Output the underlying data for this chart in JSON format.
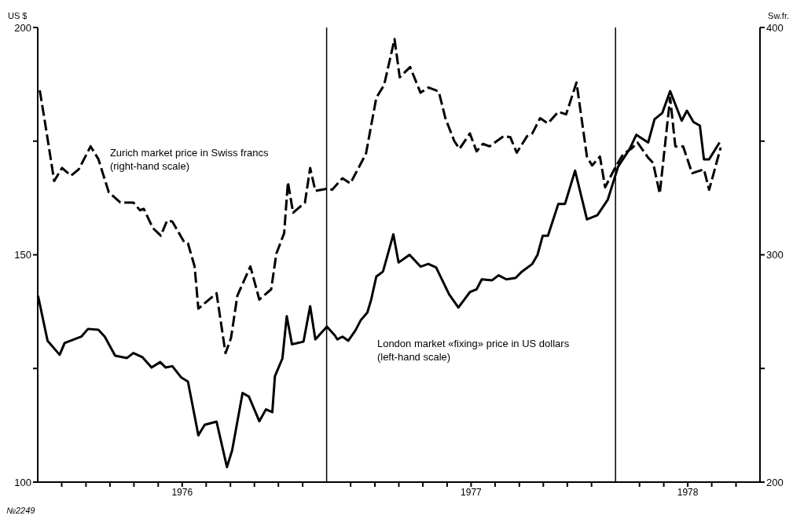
{
  "chart_data": {
    "type": "line",
    "ylabel": "US $",
    "y2label": "Sw.fr.",
    "annotations": [
      "№2249"
    ],
    "xlim": [
      1976,
      1978.5
    ],
    "xticks": [
      {
        "value": 1976.083,
        "label": null
      },
      {
        "value": 1976.167,
        "label": null
      },
      {
        "value": 1976.25,
        "label": null
      },
      {
        "value": 1976.333,
        "label": null
      },
      {
        "value": 1976.417,
        "label": null
      },
      {
        "value": 1976.5,
        "label": "1976"
      },
      {
        "value": 1976.583,
        "label": null
      },
      {
        "value": 1976.667,
        "label": null
      },
      {
        "value": 1976.75,
        "label": null
      },
      {
        "value": 1976.833,
        "label": null
      },
      {
        "value": 1976.917,
        "label": null
      },
      {
        "value": 1977.083,
        "label": null
      },
      {
        "value": 1977.167,
        "label": null
      },
      {
        "value": 1977.25,
        "label": null
      },
      {
        "value": 1977.333,
        "label": null
      },
      {
        "value": 1977.417,
        "label": null
      },
      {
        "value": 1977.5,
        "label": "1977"
      },
      {
        "value": 1977.583,
        "label": null
      },
      {
        "value": 1977.667,
        "label": null
      },
      {
        "value": 1977.75,
        "label": null
      },
      {
        "value": 1977.833,
        "label": null
      },
      {
        "value": 1977.917,
        "label": null
      },
      {
        "value": 1978.083,
        "label": null
      },
      {
        "value": 1978.167,
        "label": null
      },
      {
        "value": 1978.25,
        "label": "1978"
      },
      {
        "value": 1978.333,
        "label": null
      },
      {
        "value": 1978.417,
        "label": null
      }
    ],
    "ylim": [
      100,
      200
    ],
    "yticks": [
      100,
      {
        "value": 125,
        "label": null
      },
      150,
      {
        "value": 175,
        "label": null
      },
      200
    ],
    "y2lim": [
      200,
      400
    ],
    "y2ticks": [
      200,
      {
        "value": 250,
        "label": null
      },
      300,
      {
        "value": 350,
        "label": null
      },
      400
    ],
    "ref_lines": [
      {
        "axis": "x",
        "value": 1977,
        "label": null,
        "color": "#000000"
      },
      {
        "axis": "x",
        "value": 1978,
        "label": null,
        "color": "#000000"
      }
    ],
    "grid": false,
    "marker": "none",
    "series": [
      {
        "name": "London market «fixing» price in US dollars\n(left-hand scale)",
        "color": "#000000",
        "line_style": "solid",
        "x": [
          1976.001,
          1976.034,
          1976.076,
          1976.093,
          1976.151,
          1976.174,
          1976.21,
          1976.232,
          1976.268,
          1976.309,
          1976.331,
          1976.362,
          1976.394,
          1976.424,
          1976.443,
          1976.466,
          1976.497,
          1976.52,
          1976.556,
          1976.578,
          1976.619,
          1976.655,
          1976.673,
          1976.709,
          1976.731,
          1976.767,
          1976.79,
          1976.812,
          1976.821,
          1976.847,
          1976.862,
          1976.88,
          1976.92,
          1976.943,
          1976.961,
          1977.001,
          1977.028,
          1977.037,
          1977.055,
          1977.075,
          1977.1,
          1977.118,
          1977.141,
          1977.154,
          1977.172,
          1977.195,
          1977.231,
          1977.249,
          1977.287,
          1977.325,
          1977.352,
          1977.379,
          1977.424,
          1977.456,
          1977.496,
          1977.519,
          1977.537,
          1977.573,
          1977.595,
          1977.622,
          1977.654,
          1977.676,
          1977.712,
          1977.73,
          1977.748,
          1977.766,
          1977.802,
          1977.825,
          1977.86,
          1977.901,
          1977.937,
          1977.973,
          1978.009,
          1978.049,
          1978.072,
          1978.113,
          1978.135,
          1978.162,
          1978.189,
          1978.229,
          1978.247,
          1978.27,
          1978.292,
          1978.306,
          1978.324,
          1978.36
        ],
        "values": [
          141.0,
          131.1,
          128.0,
          130.6,
          132.0,
          133.7,
          133.5,
          132.0,
          127.8,
          127.3,
          128.4,
          127.5,
          125.2,
          126.4,
          125.2,
          125.5,
          123.0,
          122.1,
          110.3,
          112.6,
          113.3,
          103.3,
          107.0,
          119.6,
          118.8,
          113.4,
          116.0,
          115.4,
          123.3,
          127.2,
          136.5,
          130.3,
          130.9,
          138.7,
          131.4,
          134.2,
          132.3,
          131.4,
          132.0,
          131.1,
          133.4,
          135.6,
          137.3,
          140.1,
          145.2,
          146.3,
          154.5,
          148.3,
          150.0,
          147.4,
          148.0,
          147.2,
          141.3,
          138.4,
          141.8,
          142.4,
          144.6,
          144.4,
          145.5,
          144.6,
          144.9,
          146.3,
          148.0,
          150.0,
          154.2,
          154.2,
          161.2,
          161.2,
          168.5,
          157.8,
          158.7,
          162.1,
          169.4,
          173.3,
          176.4,
          174.7,
          179.8,
          181.2,
          186.0,
          179.5,
          181.7,
          179.2,
          178.4,
          171.0,
          171.0,
          174.7
        ]
      },
      {
        "name": "Zurich market price in Swiss francs\n(right-hand scale)",
        "color": "#000000",
        "line_style": "dashed",
        "axis": "y2",
        "x": [
          1976.007,
          1976.025,
          1976.057,
          1976.084,
          1976.115,
          1976.142,
          1976.183,
          1976.21,
          1976.246,
          1976.286,
          1976.331,
          1976.354,
          1976.367,
          1976.399,
          1976.426,
          1976.448,
          1976.466,
          1976.507,
          1976.52,
          1976.543,
          1976.556,
          1976.619,
          1976.65,
          1976.669,
          1976.691,
          1976.736,
          1976.767,
          1976.808,
          1976.826,
          1976.853,
          1976.866,
          1976.884,
          1976.925,
          1976.943,
          1976.961,
          1977.006,
          1977.019,
          1977.055,
          1977.082,
          1977.136,
          1977.172,
          1977.199,
          1977.235,
          1977.253,
          1977.289,
          1977.325,
          1977.352,
          1977.388,
          1977.411,
          1977.442,
          1977.46,
          1977.496,
          1977.519,
          1977.541,
          1977.564,
          1977.613,
          1977.636,
          1977.658,
          1977.694,
          1977.712,
          1977.739,
          1977.766,
          1977.802,
          1977.829,
          1977.865,
          1977.901,
          1977.919,
          1977.946,
          1977.964,
          1978.0,
          1978.027,
          1978.054,
          1978.076,
          1978.113,
          1978.13,
          1978.153,
          1978.189,
          1978.207,
          1978.234,
          1978.265,
          1978.306,
          1978.324,
          1978.364
        ],
        "values": [
          372.4,
          358.4,
          332.5,
          338.2,
          334.8,
          337.6,
          347.7,
          342.1,
          327.5,
          323.0,
          323.0,
          319.6,
          320.2,
          311.7,
          308.4,
          315.1,
          314.6,
          305.6,
          305.0,
          294.9,
          276.3,
          283.1,
          256.7,
          263.4,
          282.0,
          294.9,
          280.3,
          284.8,
          300.5,
          309.5,
          332.0,
          318.5,
          323.0,
          338.2,
          328.1,
          329.2,
          328.6,
          333.7,
          331.4,
          344.4,
          369.1,
          374.7,
          394.9,
          378.1,
          382.6,
          371.3,
          373.6,
          371.9,
          360.1,
          350.0,
          346.6,
          353.4,
          345.5,
          348.8,
          347.7,
          352.2,
          351.7,
          344.9,
          352.2,
          353.4,
          360.1,
          357.8,
          362.9,
          361.8,
          375.8,
          343.2,
          339.3,
          343.2,
          329.7,
          338.7,
          344.4,
          346.6,
          349.4,
          342.7,
          340.4,
          326.9,
          369.1,
          347.7,
          347.7,
          335.9,
          337.6,
          328.6,
          347.2
        ]
      }
    ]
  }
}
